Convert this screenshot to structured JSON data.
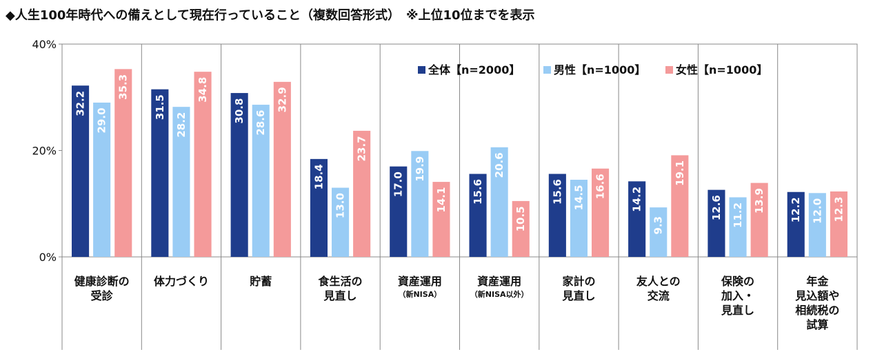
{
  "title": "◆人生100年時代への備えとして現在行っていること（複数回答形式）　※上位10位までを表示",
  "chart_data": {
    "type": "bar",
    "title": "◆人生100年時代への備えとして現在行っていること（複数回答形式）　※上位10位までを表示",
    "xlabel": "",
    "ylabel": "",
    "ylim": [
      0,
      40
    ],
    "yticks": [
      "0%",
      "20%",
      "40%"
    ],
    "grid": false,
    "legend_position": "top-right",
    "categories": [
      {
        "lines": [
          "健康診断の",
          "受診"
        ],
        "sub": ""
      },
      {
        "lines": [
          "体力づくり"
        ],
        "sub": ""
      },
      {
        "lines": [
          "貯蓄"
        ],
        "sub": ""
      },
      {
        "lines": [
          "食生活の",
          "見直し"
        ],
        "sub": ""
      },
      {
        "lines": [
          "資産運用"
        ],
        "sub": "（新NISA）"
      },
      {
        "lines": [
          "資産運用"
        ],
        "sub": "（新NISA以外）"
      },
      {
        "lines": [
          "家計の",
          "見直し"
        ],
        "sub": ""
      },
      {
        "lines": [
          "友人との",
          "交流"
        ],
        "sub": ""
      },
      {
        "lines": [
          "保険の",
          "加入・",
          "見直し"
        ],
        "sub": ""
      },
      {
        "lines": [
          "年金",
          "見込額や",
          "相続税の",
          "試算"
        ],
        "sub": ""
      }
    ],
    "series": [
      {
        "name": "全体【n=2000】",
        "color": "#1f3d8c",
        "values": [
          32.2,
          31.5,
          30.8,
          18.4,
          17.0,
          15.6,
          15.6,
          14.2,
          12.6,
          12.2
        ],
        "labels": [
          "32.2",
          "31.5",
          "30.8",
          "18.4",
          "17.0",
          "15.6",
          "15.6",
          "14.2",
          "12.6",
          "12.2"
        ]
      },
      {
        "name": "男性【n=1000】",
        "color": "#99ccf5",
        "values": [
          29.0,
          28.2,
          28.6,
          13.0,
          19.9,
          20.6,
          14.5,
          9.3,
          11.2,
          12.0
        ],
        "labels": [
          "29.0",
          "28.2",
          "28.6",
          "13.0",
          "19.9",
          "20.6",
          "14.5",
          "9.3",
          "11.2",
          "12.0"
        ]
      },
      {
        "name": "女性【n=1000】",
        "color": "#f49a9a",
        "values": [
          35.3,
          34.8,
          32.9,
          23.7,
          14.1,
          10.5,
          16.6,
          19.1,
          13.9,
          12.3
        ],
        "labels": [
          "35.3",
          "34.8",
          "32.9",
          "23.7",
          "14.1",
          "10.5",
          "16.6",
          "19.1",
          "13.9",
          "12.3"
        ]
      }
    ]
  }
}
